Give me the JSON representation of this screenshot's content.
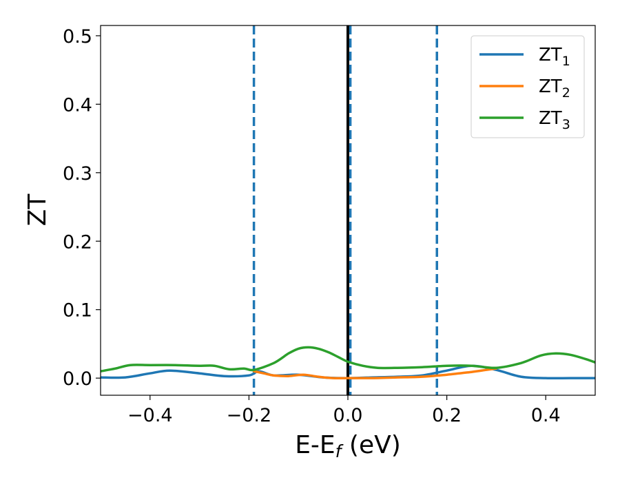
{
  "chart_data": {
    "type": "line",
    "title": "",
    "xlabel": "E-E",
    "xlabel_sub": "f",
    "xlabel_unit": " (eV)",
    "ylabel": "ZT",
    "xlim": [
      -0.5,
      0.5
    ],
    "ylim": [
      -0.025,
      0.515
    ],
    "xticks": [
      -0.4,
      -0.2,
      0.0,
      0.2,
      0.4
    ],
    "xtick_labels": [
      "−0.4",
      "−0.2",
      "0.0",
      "0.2",
      "0.4"
    ],
    "yticks": [
      0.0,
      0.1,
      0.2,
      0.3,
      0.4,
      0.5
    ],
    "ytick_labels": [
      "0.0",
      "0.1",
      "0.2",
      "0.3",
      "0.4",
      "0.5"
    ],
    "grid": false,
    "legend_position": "top-right",
    "reference_lines": [
      {
        "x": 0.0,
        "style": "solid",
        "color": "#000000"
      },
      {
        "x": -0.19,
        "style": "dashed",
        "color": "#1f77b4"
      },
      {
        "x": 0.005,
        "style": "dashed",
        "color": "#1f77b4"
      },
      {
        "x": 0.18,
        "style": "dashed",
        "color": "#1f77b4"
      }
    ],
    "series": [
      {
        "name": "ZT",
        "name_sub": "1",
        "color": "#1f77b4",
        "x": [
          -0.5,
          -0.45,
          -0.4,
          -0.36,
          -0.3,
          -0.25,
          -0.2,
          -0.18,
          -0.15,
          -0.1,
          -0.05,
          0.0,
          0.05,
          0.1,
          0.15,
          0.2,
          0.25,
          0.3,
          0.35,
          0.4,
          0.45,
          0.5
        ],
        "y": [
          0.001,
          0.001,
          0.007,
          0.011,
          0.007,
          0.003,
          0.004,
          0.01,
          0.004,
          0.005,
          0.001,
          0.0,
          0.001,
          0.002,
          0.004,
          0.011,
          0.018,
          0.012,
          0.002,
          0.0,
          0.0,
          0.0
        ]
      },
      {
        "name": "ZT",
        "name_sub": "2",
        "color": "#ff7f0e",
        "x": [
          -0.19,
          -0.17,
          -0.15,
          -0.12,
          -0.09,
          -0.06,
          -0.03,
          0.0,
          0.05,
          0.1,
          0.15,
          0.2,
          0.25,
          0.28,
          0.3
        ],
        "y": [
          0.01,
          0.007,
          0.004,
          0.003,
          0.005,
          0.002,
          0.0,
          0.0,
          0.0,
          0.001,
          0.002,
          0.005,
          0.009,
          0.012,
          0.014
        ]
      },
      {
        "name": "ZT",
        "name_sub": "3",
        "color": "#2ca02c",
        "x": [
          -0.5,
          -0.47,
          -0.44,
          -0.4,
          -0.35,
          -0.3,
          -0.27,
          -0.24,
          -0.21,
          -0.19,
          -0.15,
          -0.12,
          -0.1,
          -0.08,
          -0.06,
          -0.04,
          -0.02,
          0.0,
          0.03,
          0.06,
          0.1,
          0.15,
          0.2,
          0.25,
          0.3,
          0.35,
          0.39,
          0.42,
          0.45,
          0.48,
          0.5
        ],
        "y": [
          0.01,
          0.014,
          0.019,
          0.019,
          0.019,
          0.018,
          0.018,
          0.013,
          0.014,
          0.012,
          0.022,
          0.036,
          0.043,
          0.045,
          0.043,
          0.038,
          0.031,
          0.024,
          0.018,
          0.015,
          0.015,
          0.016,
          0.018,
          0.018,
          0.015,
          0.022,
          0.033,
          0.036,
          0.034,
          0.028,
          0.023
        ]
      }
    ]
  }
}
